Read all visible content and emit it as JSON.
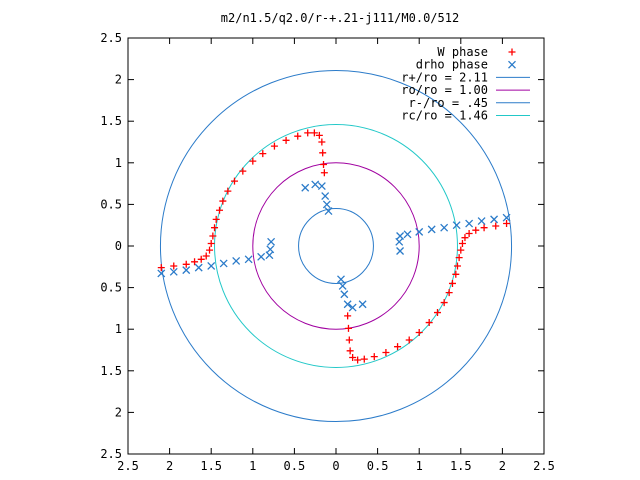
{
  "chart_data": {
    "type": "scatter",
    "title": "m2/n1.5/q2.0/r-+.21-j111/M0.0/512",
    "xlabel": "",
    "ylabel": "",
    "xlim": [
      -2.5,
      2.5
    ],
    "ylim": [
      -2.5,
      2.5
    ],
    "xticks": [
      -2.5,
      -2,
      -1.5,
      -1,
      -0.5,
      0,
      0.5,
      1,
      1.5,
      2,
      2.5
    ],
    "yticks": [
      -2.5,
      -2,
      -1.5,
      -1,
      -0.5,
      0,
      0.5,
      1,
      1.5,
      2,
      2.5
    ],
    "xtick_labels": [
      "2.5",
      "2",
      "1.5",
      "1",
      "0.5",
      "0",
      "0.5",
      "1",
      "1.5",
      "2",
      "2.5"
    ],
    "ytick_labels": [
      "2.5",
      "2",
      "1.5",
      "1",
      "0.5",
      "0",
      "0.5",
      "1",
      "1.5",
      "2",
      "2.5"
    ],
    "legend_position": "top-right",
    "grid": false,
    "circles": [
      {
        "name": "r+/ro = 2.11",
        "radius": 2.11,
        "color": "#2b7bc9"
      },
      {
        "name": "ro/ro = 1.00",
        "radius": 1.0,
        "color": "#a000a0"
      },
      {
        "name": "r-/ro = .45",
        "radius": 0.45,
        "color": "#2b7bc9"
      },
      {
        "name": "rc/ro = 1.46",
        "radius": 1.46,
        "color": "#22c8c8"
      }
    ],
    "series": [
      {
        "name": "W phase",
        "marker": "plus",
        "color": "#ff0000",
        "points": [
          [
            -2.1,
            -0.26
          ],
          [
            -1.95,
            -0.24
          ],
          [
            -1.8,
            -0.22
          ],
          [
            -1.7,
            -0.19
          ],
          [
            -1.62,
            -0.16
          ],
          [
            -1.56,
            -0.12
          ],
          [
            -1.52,
            -0.05
          ],
          [
            -1.5,
            0.03
          ],
          [
            -1.48,
            0.12
          ],
          [
            -1.46,
            0.22
          ],
          [
            -1.44,
            0.32
          ],
          [
            -1.4,
            0.43
          ],
          [
            -1.36,
            0.54
          ],
          [
            -1.3,
            0.66
          ],
          [
            -1.22,
            0.78
          ],
          [
            -1.12,
            0.9
          ],
          [
            -1.0,
            1.02
          ],
          [
            -0.88,
            1.11
          ],
          [
            -0.74,
            1.2
          ],
          [
            -0.6,
            1.27
          ],
          [
            -0.46,
            1.32
          ],
          [
            -0.34,
            1.36
          ],
          [
            -0.26,
            1.36
          ],
          [
            -0.2,
            1.33
          ],
          [
            -0.17,
            1.25
          ],
          [
            -0.16,
            1.12
          ],
          [
            -0.15,
            0.98
          ],
          [
            -0.14,
            0.88
          ],
          [
            2.05,
            0.27
          ],
          [
            1.92,
            0.24
          ],
          [
            1.78,
            0.22
          ],
          [
            1.68,
            0.19
          ],
          [
            1.6,
            0.15
          ],
          [
            1.55,
            0.1
          ],
          [
            1.52,
            0.03
          ],
          [
            1.5,
            -0.05
          ],
          [
            1.48,
            -0.14
          ],
          [
            1.46,
            -0.24
          ],
          [
            1.44,
            -0.34
          ],
          [
            1.4,
            -0.45
          ],
          [
            1.36,
            -0.56
          ],
          [
            1.3,
            -0.68
          ],
          [
            1.22,
            -0.8
          ],
          [
            1.12,
            -0.92
          ],
          [
            1.0,
            -1.04
          ],
          [
            0.88,
            -1.13
          ],
          [
            0.74,
            -1.21
          ],
          [
            0.6,
            -1.28
          ],
          [
            0.46,
            -1.33
          ],
          [
            0.34,
            -1.36
          ],
          [
            0.26,
            -1.37
          ],
          [
            0.2,
            -1.34
          ],
          [
            0.17,
            -1.26
          ],
          [
            0.16,
            -1.13
          ],
          [
            0.15,
            -0.99
          ],
          [
            0.14,
            -0.84
          ]
        ]
      },
      {
        "name": "drho phase",
        "marker": "cross",
        "color": "#2b7bc9",
        "points": [
          [
            -2.1,
            -0.33
          ],
          [
            -1.95,
            -0.31
          ],
          [
            -1.8,
            -0.29
          ],
          [
            -1.65,
            -0.26
          ],
          [
            -1.5,
            -0.24
          ],
          [
            -1.35,
            -0.21
          ],
          [
            -1.2,
            -0.18
          ],
          [
            -1.05,
            -0.16
          ],
          [
            -0.9,
            -0.13
          ],
          [
            -0.8,
            -0.11
          ],
          [
            -0.79,
            -0.04
          ],
          [
            -0.78,
            0.05
          ],
          [
            -0.37,
            0.7
          ],
          [
            -0.25,
            0.74
          ],
          [
            -0.17,
            0.72
          ],
          [
            -0.13,
            0.6
          ],
          [
            -0.11,
            0.5
          ],
          [
            -0.09,
            0.42
          ],
          [
            2.05,
            0.34
          ],
          [
            1.9,
            0.32
          ],
          [
            1.75,
            0.3
          ],
          [
            1.6,
            0.27
          ],
          [
            1.45,
            0.25
          ],
          [
            1.3,
            0.22
          ],
          [
            1.15,
            0.2
          ],
          [
            1.0,
            0.17
          ],
          [
            0.86,
            0.14
          ],
          [
            0.77,
            0.12
          ],
          [
            0.76,
            0.05
          ],
          [
            0.77,
            -0.06
          ],
          [
            0.32,
            -0.7
          ],
          [
            0.2,
            -0.74
          ],
          [
            0.14,
            -0.7
          ],
          [
            0.1,
            -0.58
          ],
          [
            0.08,
            -0.48
          ],
          [
            0.06,
            -0.4
          ]
        ]
      }
    ]
  }
}
